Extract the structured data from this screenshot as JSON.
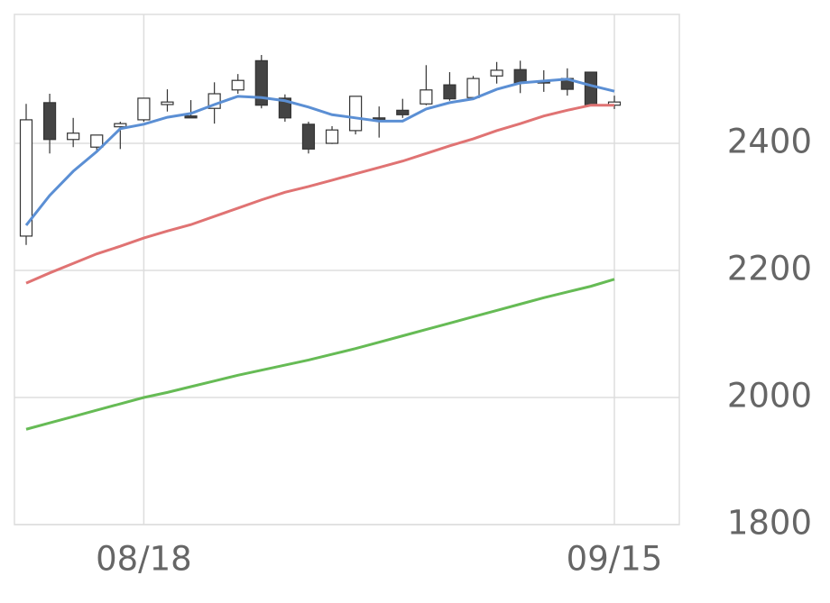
{
  "chart_data": {
    "type": "candlestick",
    "categories": [
      null,
      null,
      null,
      null,
      null,
      "08/18",
      null,
      null,
      null,
      null,
      null,
      null,
      null,
      null,
      null,
      null,
      null,
      null,
      null,
      null,
      null,
      null,
      null,
      null,
      null,
      "09/15"
    ],
    "open": [
      2254,
      2464,
      2406,
      2394,
      2426,
      2437,
      2461,
      2443,
      2455,
      2484,
      2530,
      2471,
      2430,
      2400,
      2420,
      2440,
      2452,
      2462,
      2492,
      2472,
      2506,
      2516,
      2497,
      2502,
      2512,
      2460
    ],
    "high": [
      2462,
      2478,
      2440,
      2413,
      2434,
      2471,
      2485,
      2468,
      2496,
      2509,
      2539,
      2477,
      2434,
      2427,
      2474,
      2458,
      2470,
      2523,
      2512,
      2506,
      2528,
      2530,
      2515,
      2518,
      2512,
      2475
    ],
    "low": [
      2240,
      2384,
      2394,
      2387,
      2391,
      2434,
      2450,
      2440,
      2431,
      2478,
      2455,
      2434,
      2384,
      2399,
      2414,
      2409,
      2440,
      2460,
      2467,
      2470,
      2494,
      2479,
      2481,
      2475,
      2460,
      2454
    ],
    "close": [
      2437,
      2406,
      2416,
      2413,
      2431,
      2471,
      2465,
      2440,
      2478,
      2499,
      2460,
      2440,
      2391,
      2421,
      2474,
      2437,
      2445,
      2484,
      2470,
      2502,
      2515,
      2495,
      2496,
      2485,
      2460,
      2465
    ],
    "up_color": "#ffffff",
    "down_color": "#444444",
    "series": [
      {
        "color": "#5b8fd4",
        "values": [
          2271,
          2318,
          2356,
          2387,
          2423,
          2430,
          2441,
          2447,
          2461,
          2474,
          2472,
          2467,
          2457,
          2445,
          2440,
          2435,
          2435,
          2454,
          2464,
          2470,
          2485,
          2495,
          2498,
          2501,
          2491,
          2482
        ]
      },
      {
        "color": "#e07373",
        "values": [
          2180,
          2196,
          2211,
          2226,
          2238,
          2251,
          2262,
          2272,
          2285,
          2298,
          2311,
          2323,
          2332,
          2342,
          2352,
          2362,
          2372,
          2384,
          2396,
          2407,
          2420,
          2431,
          2443,
          2452,
          2460,
          2460
        ]
      },
      {
        "color": "#66bb55",
        "values": [
          1950,
          1960,
          1970,
          1980,
          1990,
          2000,
          2008,
          2017,
          2026,
          2035,
          2043,
          2051,
          2059,
          2068,
          2077,
          2087,
          2097,
          2107,
          2117,
          2127,
          2137,
          2147,
          2157,
          2166,
          2175,
          2186
        ]
      }
    ],
    "ylim": [
      1800,
      2600
    ],
    "yticks": [
      1800,
      2000,
      2200,
      2400
    ],
    "grid": true
  }
}
